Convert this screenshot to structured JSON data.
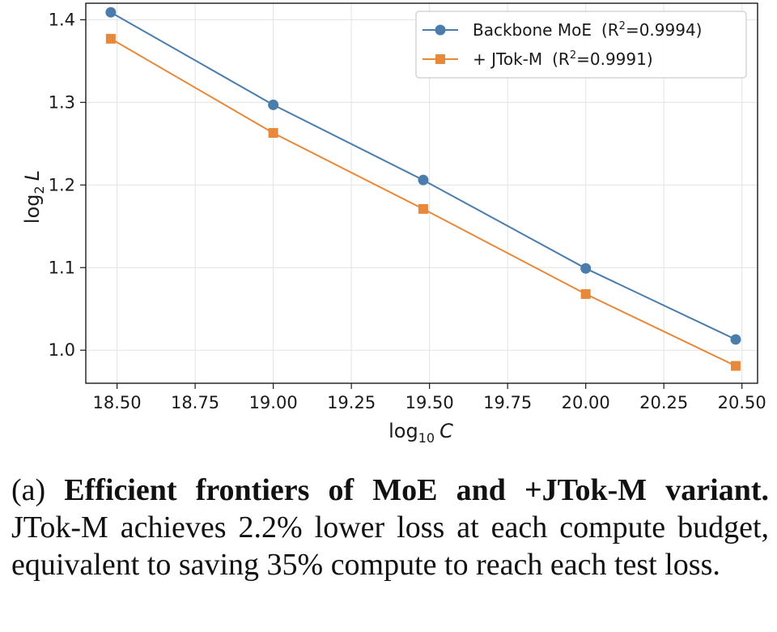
{
  "chart_data": {
    "type": "line",
    "title": "",
    "xlabel_main": "log",
    "xlabel_sub": "10",
    "xlabel_var": "C",
    "ylabel_main": "log",
    "ylabel_sub": "2",
    "ylabel_var": "L",
    "xlim": [
      18.4,
      20.55
    ],
    "ylim": [
      0.96,
      1.42
    ],
    "x_ticks": [
      18.5,
      18.75,
      19.0,
      19.25,
      19.5,
      19.75,
      20.0,
      20.25,
      20.5
    ],
    "x_tick_labels": [
      "18.50",
      "18.75",
      "19.00",
      "19.25",
      "19.50",
      "19.75",
      "20.00",
      "20.25",
      "20.50"
    ],
    "y_ticks": [
      1.0,
      1.1,
      1.2,
      1.3,
      1.4
    ],
    "y_tick_labels": [
      "1.0",
      "1.1",
      "1.2",
      "1.3",
      "1.4"
    ],
    "grid": true,
    "legend_position": "top-right",
    "series": [
      {
        "name": "Backbone MoE",
        "r2_prefix": "(R",
        "r2_sup": "2",
        "r2_value": "=0.9994)",
        "color": "#4a7cac",
        "marker": "circle",
        "x": [
          18.48,
          19.0,
          19.48,
          20.0,
          20.48
        ],
        "y": [
          1.409,
          1.297,
          1.206,
          1.099,
          1.013
        ]
      },
      {
        "name": "+ JTok-M",
        "r2_prefix": "(R",
        "r2_sup": "2",
        "r2_value": "=0.9991)",
        "color": "#e8883a",
        "marker": "square",
        "x": [
          18.48,
          19.0,
          19.48,
          20.0,
          20.48
        ],
        "y": [
          1.377,
          1.263,
          1.171,
          1.068,
          0.981
        ]
      }
    ]
  },
  "caption": {
    "prefix": "(a) ",
    "bold": "Efficient frontiers of MoE and +JTok-M variant.",
    "body": " JTok-M achieves 2.2% lower loss at each compute budget, equivalent to saving 35% compute to reach each test loss."
  }
}
